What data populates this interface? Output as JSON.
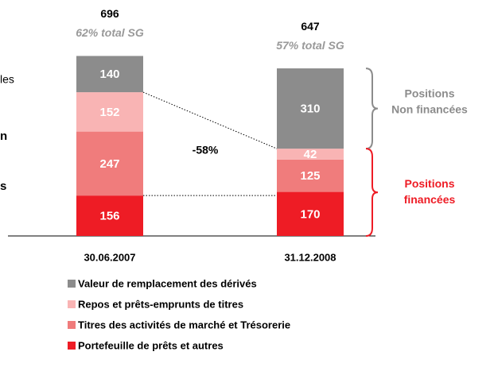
{
  "chart_data": {
    "type": "stacked_bar",
    "categories": [
      "30.06.2007",
      "31.12.2008"
    ],
    "totals": [
      696,
      647
    ],
    "subtitles": [
      "62% total SG",
      "57% total SG"
    ],
    "series": [
      {
        "name": "Portefeuille de prêts et autres",
        "color": "#ee1c25",
        "values": [
          156,
          170
        ]
      },
      {
        "name": "Titres des activités de marché et Trésorerie",
        "color": "#f07c7c",
        "values": [
          247,
          125
        ]
      },
      {
        "name": "Repos et prêts-emprunts de titres",
        "color": "#f9b4b4",
        "values": [
          152,
          42
        ]
      },
      {
        "name": "Valeur de remplacement des dérivés",
        "color": "#8c8c8c",
        "values": [
          140,
          310
        ]
      }
    ],
    "annotation": "-58%",
    "brackets": [
      {
        "label": "Positions Non financées",
        "color": "#8c8c8c"
      },
      {
        "label": "Positions financées",
        "color": "#ee1c25"
      }
    ],
    "left_fragments": [
      "les",
      "n",
      "s"
    ]
  }
}
